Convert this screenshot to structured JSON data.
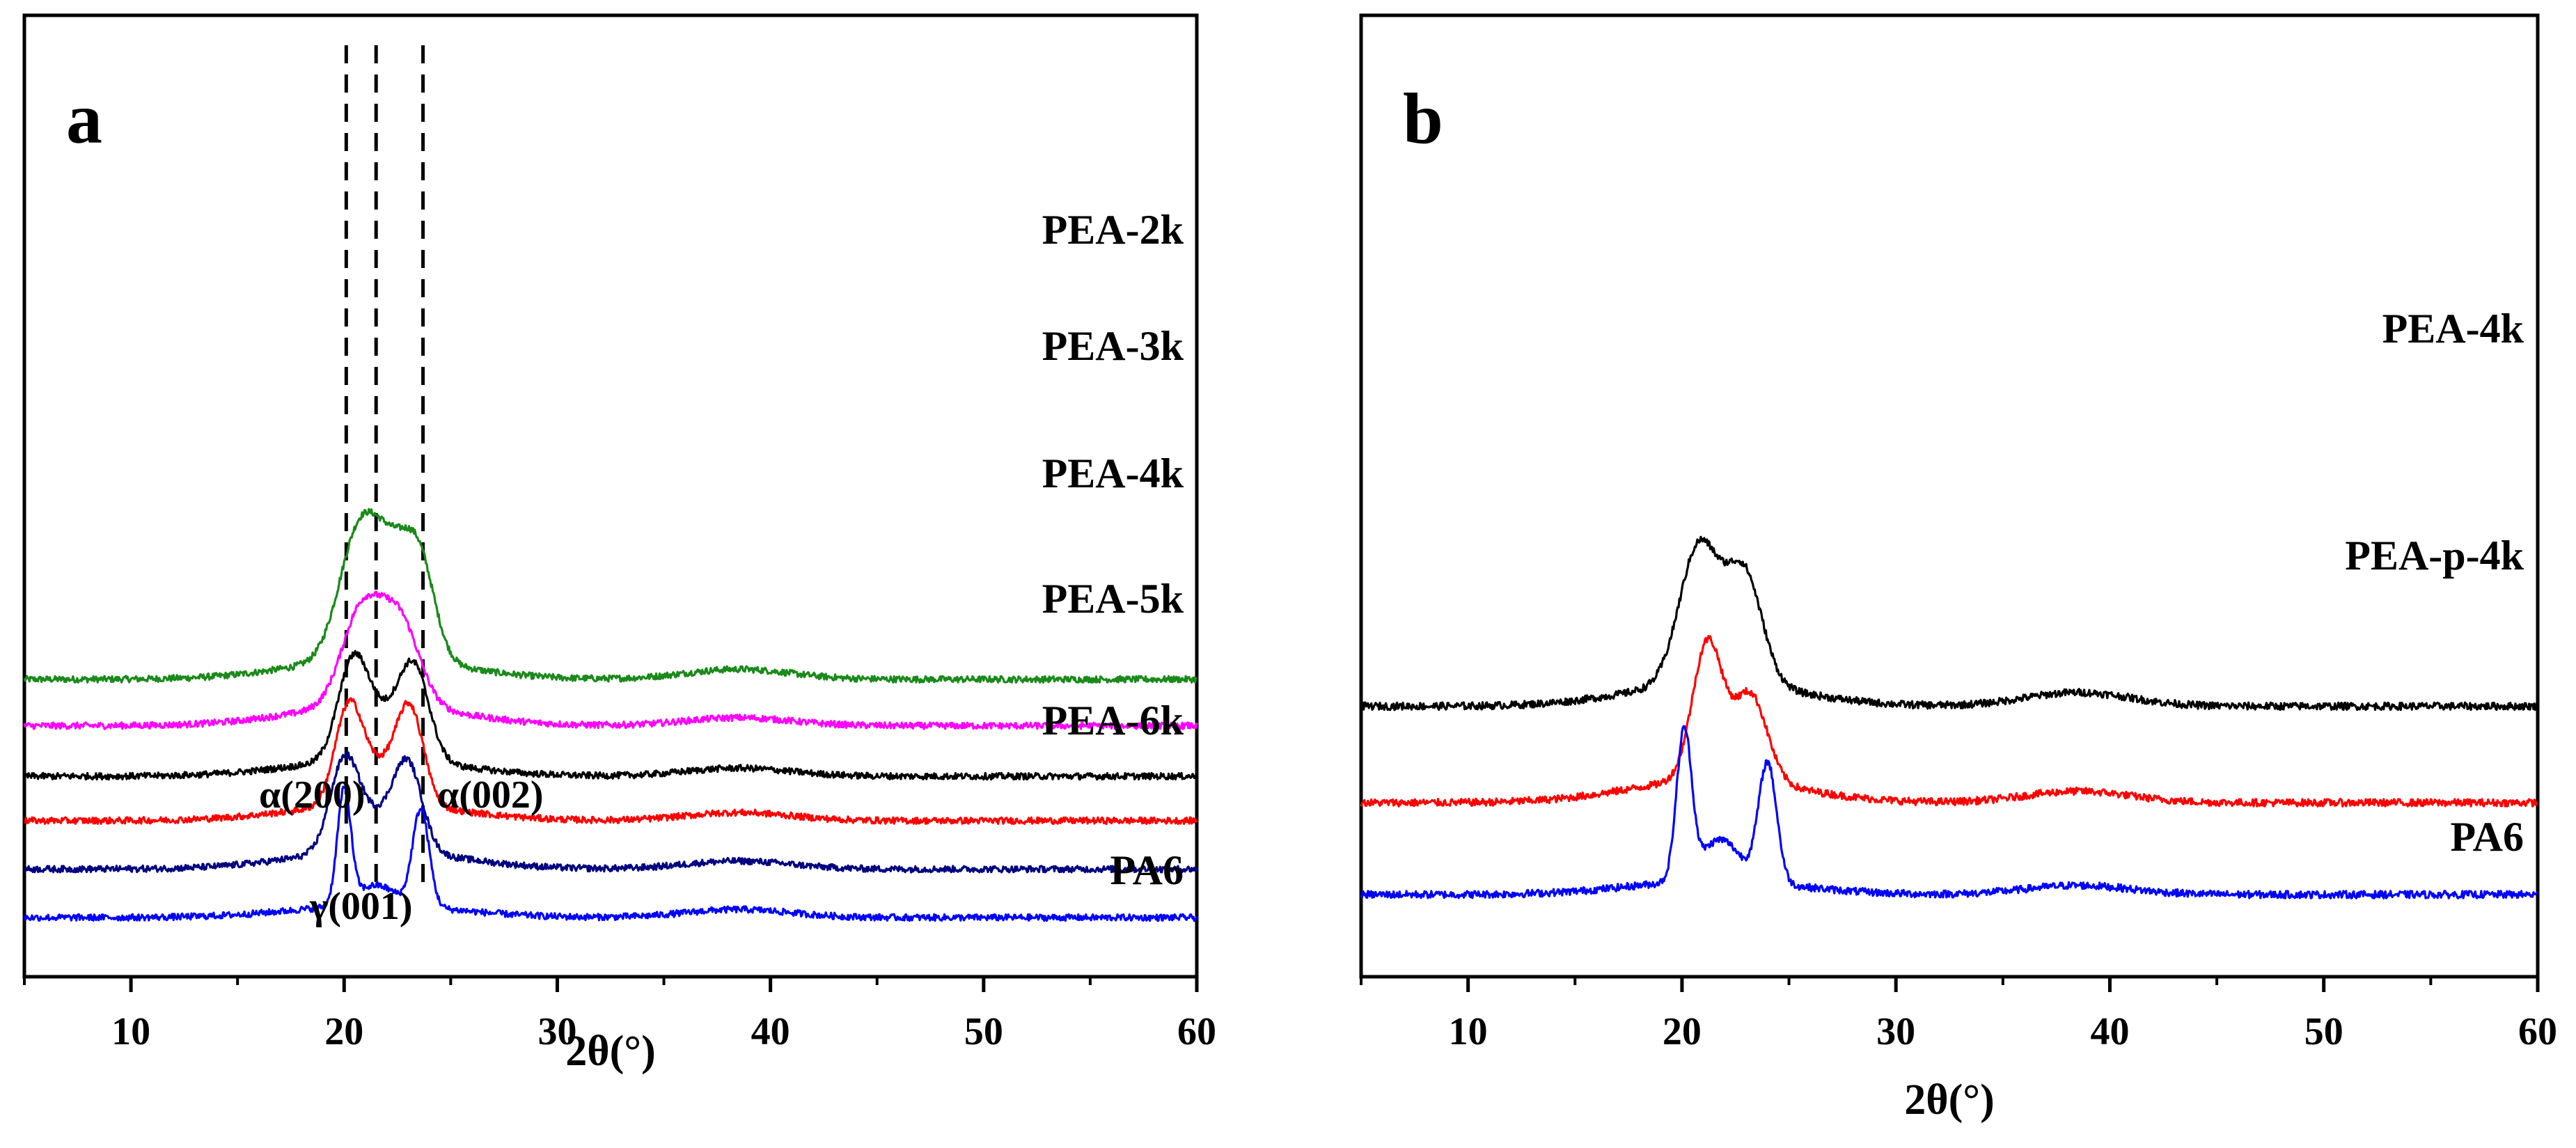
{
  "chart_data": [
    {
      "panel": "a",
      "type": "line",
      "xlabel": "2θ(°)",
      "ylabel": "",
      "xlim": [
        5,
        60
      ],
      "xticks": [
        10,
        20,
        30,
        40,
        50,
        60
      ],
      "tick_labels": [
        "10",
        "20",
        "30",
        "40",
        "50",
        "60"
      ],
      "y_axis_ticks": "none",
      "reference_lines": [
        20.1,
        21.5,
        23.7
      ],
      "annotations": [
        {
          "text": "α(200)",
          "near_x": 20.1
        },
        {
          "text": "γ(001)",
          "near_x": 21.5
        },
        {
          "text": "α(002)",
          "near_x": 23.7
        }
      ],
      "series": [
        {
          "name": "PEA-2k",
          "color": "#1a8a1a",
          "baseline": 5.9,
          "background": 0.5,
          "peaks": [
            {
              "x": 20.6,
              "h": 2.7,
              "w": 1.3
            },
            {
              "x": 22.3,
              "h": 2.5,
              "w": 1.5
            },
            {
              "x": 23.6,
              "h": 1.7,
              "w": 1.0
            },
            {
              "x": 38.5,
              "h": 0.25,
              "w": 3.5
            }
          ]
        },
        {
          "name": "PEA-3k",
          "color": "#ff00ff",
          "baseline": 4.75,
          "background": 0.5,
          "peaks": [
            {
              "x": 20.8,
              "h": 2.3,
              "w": 1.3
            },
            {
              "x": 22.6,
              "h": 2.1,
              "w": 1.3
            },
            {
              "x": 38.5,
              "h": 0.2,
              "w": 3.5
            }
          ]
        },
        {
          "name": "PEA-4k",
          "color": "#000000",
          "baseline": 3.5,
          "background": 0.4,
          "peaks": [
            {
              "x": 20.4,
              "h": 2.2,
              "w": 1.0
            },
            {
              "x": 23.3,
              "h": 2.1,
              "w": 1.0
            },
            {
              "x": 21.8,
              "h": 1.0,
              "w": 1.5
            },
            {
              "x": 38.5,
              "h": 0.2,
              "w": 3.5
            }
          ]
        },
        {
          "name": "PEA-5k",
          "color": "#ff0000",
          "baseline": 2.4,
          "background": 0.4,
          "peaks": [
            {
              "x": 20.2,
              "h": 2.2,
              "w": 0.9
            },
            {
              "x": 23.1,
              "h": 2.2,
              "w": 0.9
            },
            {
              "x": 21.6,
              "h": 0.9,
              "w": 1.5
            },
            {
              "x": 38.5,
              "h": 0.2,
              "w": 3.5
            }
          ]
        },
        {
          "name": "PEA-6k",
          "color": "#000080",
          "baseline": 1.2,
          "background": 0.45,
          "peaks": [
            {
              "x": 20.0,
              "h": 2.1,
              "w": 0.95
            },
            {
              "x": 23.0,
              "h": 2.0,
              "w": 0.95
            },
            {
              "x": 21.5,
              "h": 0.8,
              "w": 1.5
            },
            {
              "x": 38.5,
              "h": 0.2,
              "w": 3.5
            }
          ]
        },
        {
          "name": "PA6",
          "color": "#0000ff",
          "baseline": 0.0,
          "background": 0.3,
          "peaks": [
            {
              "x": 20.0,
              "h": 2.8,
              "w": 0.45
            },
            {
              "x": 23.6,
              "h": 2.4,
              "w": 0.55
            },
            {
              "x": 21.5,
              "h": 0.5,
              "w": 1.3
            },
            {
              "x": 38.5,
              "h": 0.2,
              "w": 3.5
            }
          ]
        }
      ]
    },
    {
      "panel": "b",
      "type": "line",
      "xlabel": "2θ(°)",
      "ylabel": "",
      "xlim": [
        5,
        60
      ],
      "xticks": [
        10,
        20,
        30,
        40,
        50,
        60
      ],
      "tick_labels": [
        "10",
        "20",
        "30",
        "40",
        "50",
        "60"
      ],
      "y_axis_ticks": "none",
      "series": [
        {
          "name": "PEA-4k",
          "color": "#000000",
          "baseline": 4.1,
          "background": 0.5,
          "peaks": [
            {
              "x": 20.8,
              "h": 3.0,
              "w": 1.3
            },
            {
              "x": 22.9,
              "h": 2.4,
              "w": 1.2
            },
            {
              "x": 38.5,
              "h": 0.3,
              "w": 3.5
            }
          ]
        },
        {
          "name": "PEA-p-4k",
          "color": "#ff0000",
          "baseline": 2.0,
          "background": 0.5,
          "peaks": [
            {
              "x": 21.2,
              "h": 3.0,
              "w": 1.0
            },
            {
              "x": 23.2,
              "h": 1.9,
              "w": 1.1
            },
            {
              "x": 38.5,
              "h": 0.25,
              "w": 3.5
            }
          ]
        },
        {
          "name": "PA6",
          "color": "#0000ff",
          "baseline": 0.0,
          "background": 0.3,
          "peaks": [
            {
              "x": 20.1,
              "h": 3.2,
              "w": 0.5
            },
            {
              "x": 24.0,
              "h": 2.6,
              "w": 0.6
            },
            {
              "x": 21.8,
              "h": 0.9,
              "w": 1.3
            },
            {
              "x": 38.5,
              "h": 0.2,
              "w": 3.5
            }
          ]
        }
      ]
    }
  ]
}
